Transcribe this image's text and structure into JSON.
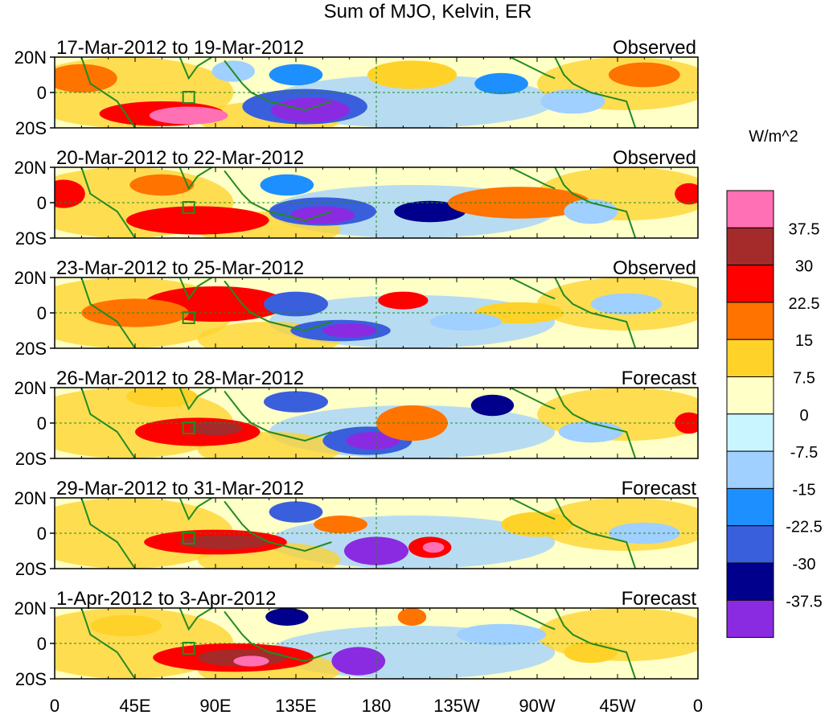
{
  "chart_data": {
    "type": "heatmap",
    "title": "Sum of MJO, Kelvin, ER",
    "colorbar_units": "W/m^2",
    "colorbar_levels": [
      "37.5",
      "30",
      "22.5",
      "15",
      "7.5",
      "0",
      "-7.5",
      "-15",
      "-22.5",
      "-30",
      "-37.5"
    ],
    "colors": [
      "#ff70b4",
      "#a52a2a",
      "#ff0000",
      "#ff7300",
      "#ffd22a",
      "#ffffc8",
      "#c8f5ff",
      "#9fd0ff",
      "#1e8fff",
      "#3a5fdc",
      "#00008c",
      "#8a2be2"
    ],
    "lat_tick_labels": [
      "20N",
      "0",
      "20S"
    ],
    "lon_tick_labels": [
      "0",
      "45E",
      "90E",
      "135E",
      "180",
      "135W",
      "90W",
      "45W",
      "0"
    ],
    "panels": [
      {
        "date_range": "17-Mar-2012 to 19-Mar-2012",
        "status": "Observed"
      },
      {
        "date_range": "20-Mar-2012 to 22-Mar-2012",
        "status": "Observed"
      },
      {
        "date_range": "23-Mar-2012 to 25-Mar-2012",
        "status": "Observed"
      },
      {
        "date_range": "26-Mar-2012 to 28-Mar-2012",
        "status": "Forecast"
      },
      {
        "date_range": "29-Mar-2012 to 31-Mar-2012",
        "status": "Forecast"
      },
      {
        "date_range": "1-Apr-2012 to 3-Apr-2012",
        "status": "Forecast"
      }
    ],
    "blobs": [
      [
        [
          60,
          -12,
          35,
          7,
          "#ff0000"
        ],
        [
          75,
          -13,
          22,
          5,
          "#ff70b4"
        ],
        [
          15,
          8,
          20,
          8,
          "#ff7300"
        ],
        [
          140,
          -8,
          35,
          10,
          "#3a5fdc"
        ],
        [
          143,
          -10,
          22,
          7,
          "#8a2be2"
        ],
        [
          135,
          10,
          15,
          6,
          "#1e8fff"
        ],
        [
          250,
          5,
          15,
          6,
          "#1e8fff"
        ],
        [
          290,
          -5,
          18,
          7,
          "#9fd0ff"
        ],
        [
          330,
          10,
          20,
          7,
          "#ff7300"
        ],
        [
          200,
          10,
          25,
          8,
          "#ffd22a"
        ],
        [
          100,
          12,
          12,
          6,
          "#9fd0ff"
        ]
      ],
      [
        [
          5,
          5,
          12,
          8,
          "#ff0000"
        ],
        [
          80,
          -10,
          40,
          8,
          "#ff0000"
        ],
        [
          60,
          10,
          18,
          6,
          "#ff7300"
        ],
        [
          150,
          -5,
          30,
          8,
          "#3a5fdc"
        ],
        [
          150,
          -7,
          18,
          5,
          "#8a2be2"
        ],
        [
          210,
          -5,
          20,
          6,
          "#00008c"
        ],
        [
          130,
          10,
          15,
          6,
          "#1e8fff"
        ],
        [
          260,
          0,
          40,
          9,
          "#ff7300"
        ],
        [
          355,
          5,
          8,
          6,
          "#ff0000"
        ],
        [
          300,
          -5,
          15,
          7,
          "#9fd0ff"
        ]
      ],
      [
        [
          90,
          5,
          40,
          10,
          "#ff0000"
        ],
        [
          45,
          0,
          30,
          8,
          "#ff7300"
        ],
        [
          135,
          5,
          18,
          7,
          "#3a5fdc"
        ],
        [
          160,
          -10,
          28,
          6,
          "#3a5fdc"
        ],
        [
          165,
          -10,
          15,
          4,
          "#8a2be2"
        ],
        [
          195,
          7,
          14,
          5,
          "#ff0000"
        ],
        [
          260,
          0,
          25,
          6,
          "#ffd22a"
        ],
        [
          320,
          5,
          20,
          6,
          "#9fd0ff"
        ],
        [
          230,
          -5,
          20,
          5,
          "#9fd0ff"
        ]
      ],
      [
        [
          80,
          -5,
          35,
          8,
          "#ff0000"
        ],
        [
          90,
          -3,
          15,
          4,
          "#a52a2a"
        ],
        [
          135,
          12,
          18,
          6,
          "#3a5fdc"
        ],
        [
          175,
          -10,
          25,
          8,
          "#3a5fdc"
        ],
        [
          178,
          -10,
          15,
          5,
          "#8a2be2"
        ],
        [
          245,
          10,
          12,
          6,
          "#00008c"
        ],
        [
          200,
          0,
          20,
          10,
          "#ff7300"
        ],
        [
          355,
          0,
          8,
          6,
          "#ff0000"
        ],
        [
          60,
          15,
          20,
          6,
          "#ffd22a"
        ],
        [
          300,
          -5,
          18,
          6,
          "#9fd0ff"
        ]
      ],
      [
        [
          90,
          -5,
          40,
          7,
          "#ff0000"
        ],
        [
          95,
          -5,
          25,
          4,
          "#a52a2a"
        ],
        [
          135,
          12,
          15,
          6,
          "#3a5fdc"
        ],
        [
          180,
          -10,
          18,
          8,
          "#8a2be2"
        ],
        [
          210,
          -8,
          12,
          6,
          "#ff0000"
        ],
        [
          212,
          -8,
          6,
          3,
          "#ff70b4"
        ],
        [
          160,
          5,
          15,
          5,
          "#ff7300"
        ],
        [
          270,
          5,
          20,
          7,
          "#ffd22a"
        ],
        [
          330,
          0,
          20,
          6,
          "#9fd0ff"
        ]
      ],
      [
        [
          100,
          -8,
          45,
          8,
          "#ff0000"
        ],
        [
          105,
          -8,
          25,
          5,
          "#a52a2a"
        ],
        [
          110,
          -10,
          10,
          3,
          "#ff70b4"
        ],
        [
          130,
          15,
          12,
          5,
          "#00008c"
        ],
        [
          170,
          -10,
          15,
          8,
          "#8a2be2"
        ],
        [
          200,
          15,
          8,
          5,
          "#ff7300"
        ],
        [
          250,
          5,
          25,
          6,
          "#9fd0ff"
        ],
        [
          300,
          -5,
          15,
          6,
          "#ffd22a"
        ],
        [
          40,
          10,
          20,
          6,
          "#ffd22a"
        ]
      ]
    ]
  }
}
